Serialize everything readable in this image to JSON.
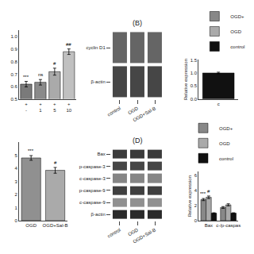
{
  "chart_data": [
    {
      "type": "bar",
      "categories": [
        "+\n-",
        "+\n1",
        "+\n5",
        "+\n10"
      ],
      "values": [
        0.62,
        0.635,
        0.72,
        0.88
      ],
      "colors": [
        "#7a7a7a",
        "#8a8a8a",
        "#aaaaaa",
        "#c0c0c0"
      ],
      "yerr": [
        0.022,
        0.022,
        0.028,
        0.022
      ],
      "annotations": [
        "***",
        "ns",
        "#",
        "##"
      ],
      "ylim": [
        0.5,
        1.05
      ],
      "yticks": [
        0.5,
        0.6,
        0.7,
        0.8,
        0.9,
        {
          "value": 1.0,
          "label": "1.0"
        }
      ],
      "grid": false
    },
    {
      "type": "heatmap",
      "title": "(B)",
      "x": [
        "control",
        "OGD",
        "OGD+Sal-B"
      ],
      "y": [
        "cyclin D1",
        "β-actin"
      ],
      "cells": [
        [
          0.6,
          0.6,
          0.6
        ],
        [
          0.75,
          0.75,
          0.75
        ]
      ],
      "zlim": [
        0,
        1
      ]
    },
    {
      "type": "bar",
      "categories": [
        "c"
      ],
      "series": [
        {
          "name": "OGD+",
          "color": "#888888",
          "values": [
            null
          ]
        },
        {
          "name": "OGD",
          "color": "#aaaaaa",
          "values": [
            null
          ]
        },
        {
          "name": "control",
          "color": "#111111",
          "values": [
            1.0
          ],
          "yerr": [
            0.03
          ]
        }
      ],
      "ylabel": "Relative expression",
      "ylim": [
        0.0,
        1.5
      ],
      "yticks": [
        {
          "value": 0.0,
          "label": "0.0"
        },
        0.5,
        {
          "value": 1.0,
          "label": "1.0"
        },
        1.5
      ],
      "legend": "upper left",
      "grid": false
    },
    {
      "type": "bar",
      "categories": [
        "OGD",
        "OGD+Sal-B"
      ],
      "values": [
        4.8,
        3.85
      ],
      "colors": [
        "#909090",
        "#aaaaaa"
      ],
      "yerr": [
        0.18,
        0.22
      ],
      "annotations": [
        "***",
        "#"
      ],
      "ylim": [
        0,
        6.0
      ],
      "yticks": [
        0,
        1,
        2,
        3,
        4,
        5
      ],
      "grid": false
    },
    {
      "type": "heatmap",
      "title": "(D)",
      "x": [
        "control",
        "OGD",
        "OGD+Sal-B"
      ],
      "y": [
        "Bax",
        "p-caspase-3",
        "c-caspase-3",
        "p-caspase-9",
        "c-caspase-9",
        "β-actin"
      ],
      "cells": [
        [
          0.8,
          0.8,
          0.8
        ],
        [
          0.75,
          0.75,
          0.75
        ],
        [
          0.45,
          0.45,
          0.45
        ],
        [
          0.78,
          0.78,
          0.78
        ],
        [
          0.4,
          0.4,
          0.4
        ],
        [
          0.88,
          0.88,
          0.88
        ]
      ],
      "zlim": [
        0,
        1
      ]
    },
    {
      "type": "bar",
      "categories": [
        "Bax",
        "c-/p-caspas"
      ],
      "series": [
        {
          "name": "OGD+",
          "color": "#888888",
          "values": [
            2.8,
            1.75
          ],
          "yerr": [
            0.14,
            0.12
          ],
          "annotations": [
            "***",
            null
          ]
        },
        {
          "name": "OGD",
          "color": "#aaaaaa",
          "values": [
            3.1,
            2.1
          ],
          "yerr": [
            0.17,
            0.14
          ],
          "annotations": [
            "#",
            null
          ]
        },
        {
          "name": "control",
          "color": "#111111",
          "values": [
            1.0,
            1.0
          ],
          "yerr": [
            0.05,
            0.05
          ]
        }
      ],
      "ylabel": "Relative expression",
      "ylim": [
        0,
        6.5
      ],
      "yticks": [
        0,
        2,
        4,
        6
      ],
      "legend": "upper right",
      "grid": false
    }
  ]
}
